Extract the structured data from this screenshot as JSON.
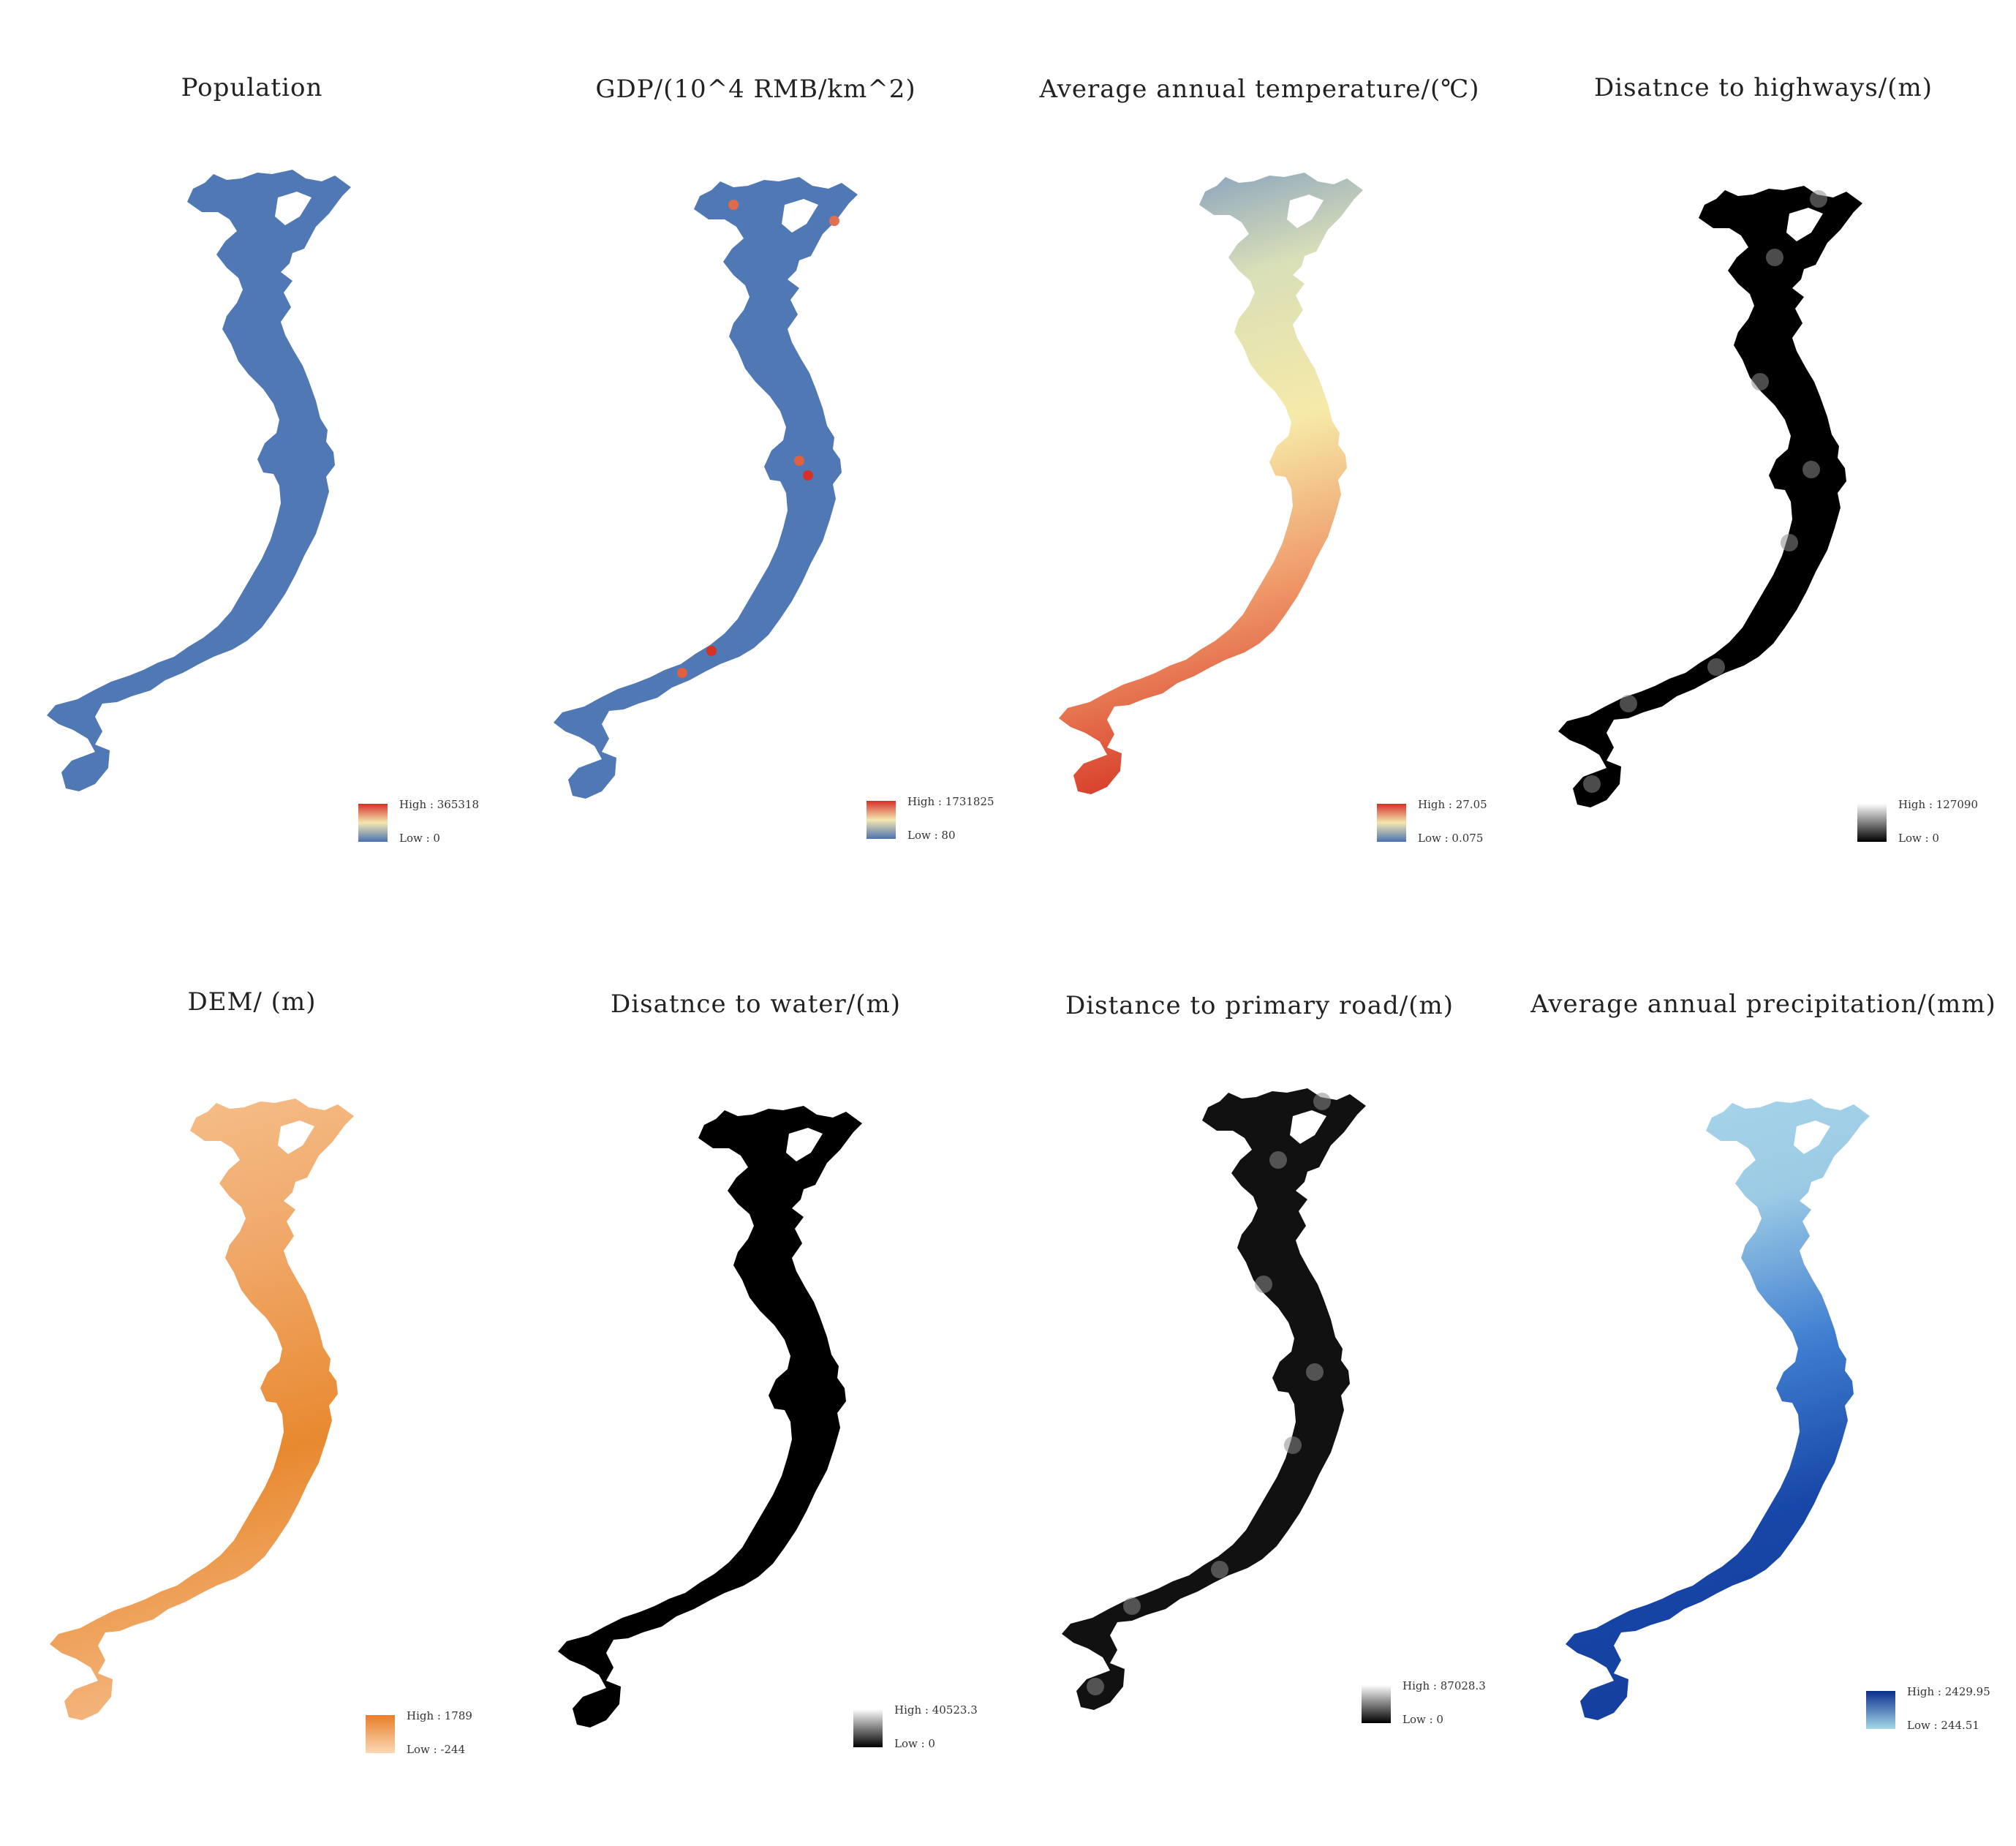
{
  "panels": [
    {
      "title": "Population",
      "high_label": "High : 365318",
      "low_label": "Low : 0",
      "ramp": [
        "#4a72b0",
        "#f4e7b0",
        "#d73027"
      ],
      "fill": [
        "#4f78b4",
        "#4f78b4"
      ],
      "style": "solid"
    },
    {
      "title": "GDP/(10^4 RMB/km^2)",
      "high_label": "High : 1731825",
      "low_label": "Low : 80",
      "ramp": [
        "#4a72b0",
        "#f4e7b0",
        "#d73027"
      ],
      "fill": [
        "#4f78b4",
        "#4f78b4"
      ],
      "style": "speckle"
    },
    {
      "title": "Average annual temperature/(℃)",
      "high_label": "High : 27.05",
      "low_label": "Low : 0.075",
      "ramp": [
        "#4a72b0",
        "#f4e7b0",
        "#d73027"
      ],
      "fill": [
        "#6f8fc0",
        "#d9dfb8",
        "#f6eaa8",
        "#ef9a6a",
        "#d8402c"
      ],
      "style": "gradient"
    },
    {
      "title": "Disatnce to highways/(m)",
      "high_label": "High : 127090",
      "low_label": "Low : 0",
      "ramp": [
        "#000000",
        "#ffffff"
      ],
      "fill": [
        "#000000",
        "#000000"
      ],
      "style": "blotch"
    },
    {
      "title": "DEM/ (m)",
      "high_label": "High : 1789",
      "low_label": "Low : -244",
      "ramp": [
        "#fbd8b4",
        "#e87f2a"
      ],
      "fill": [
        "#f6c390",
        "#f0a869",
        "#e8892f",
        "#f3b57c"
      ],
      "style": "gradient"
    },
    {
      "title": "Disatnce to water/(m)",
      "high_label": "High : 40523.3",
      "low_label": "Low : 0",
      "ramp": [
        "#000000",
        "#ffffff"
      ],
      "fill": [
        "#000000",
        "#000000"
      ],
      "style": "solid"
    },
    {
      "title": "Distance to primary road/(m)",
      "high_label": "High : 87028.3",
      "low_label": "Low : 0",
      "ramp": [
        "#000000",
        "#ffffff"
      ],
      "fill": [
        "#111111",
        "#111111"
      ],
      "style": "blotch"
    },
    {
      "title": "Average annual precipitation/(mm)",
      "high_label": "High : 2429.95",
      "low_label": "Low : 244.51",
      "ramp": [
        "#a6d8ea",
        "#0a2f8c"
      ],
      "fill": [
        "#a9d6ea",
        "#9ccbe5",
        "#3f7ed0",
        "#1747a8",
        "#163f9e"
      ],
      "style": "gradient"
    }
  ]
}
